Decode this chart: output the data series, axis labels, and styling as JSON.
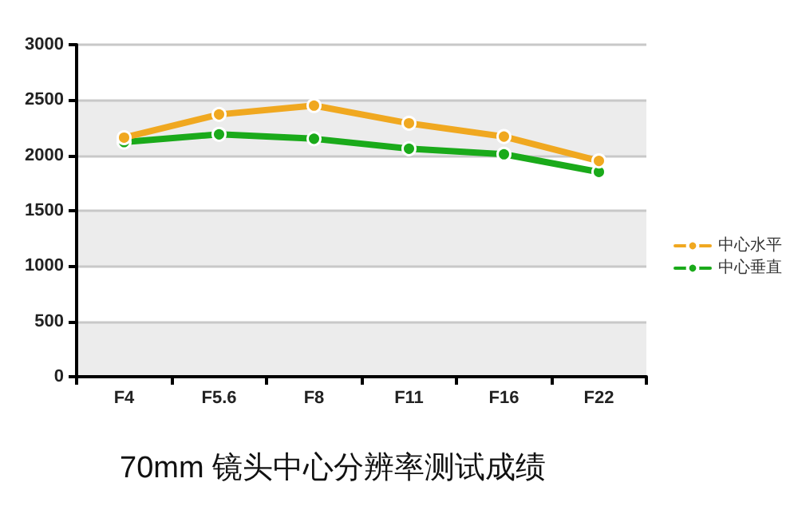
{
  "chart_data": {
    "type": "line",
    "title": "70mm 镜头中心分辨率测试成绩",
    "categories": [
      "F4",
      "F5.6",
      "F8",
      "F11",
      "F16",
      "F22"
    ],
    "series": [
      {
        "name": "中心水平",
        "color": "#f0a820",
        "values": [
          2160,
          2370,
          2450,
          2290,
          2170,
          1950
        ]
      },
      {
        "name": "中心垂直",
        "color": "#1aaa1a",
        "values": [
          2120,
          2190,
          2150,
          2060,
          2010,
          1850
        ]
      }
    ],
    "ylim": [
      0,
      3000
    ],
    "yticks": [
      0,
      500,
      1000,
      1500,
      2000,
      2500,
      3000
    ],
    "grid": "y",
    "legend": "right",
    "marker": "circle",
    "line_style": "solid"
  }
}
